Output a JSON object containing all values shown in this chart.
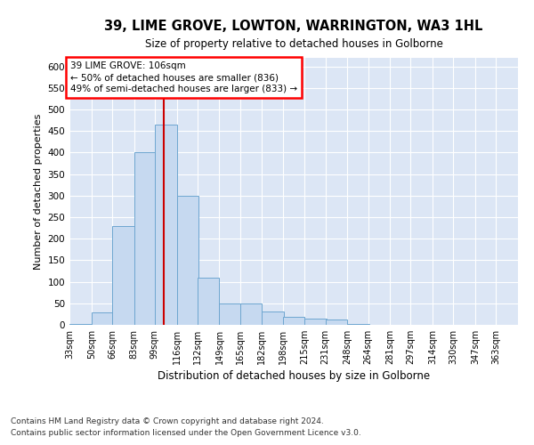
{
  "title": "39, LIME GROVE, LOWTON, WARRINGTON, WA3 1HL",
  "subtitle": "Size of property relative to detached houses in Golborne",
  "xlabel": "Distribution of detached houses by size in Golborne",
  "ylabel": "Number of detached properties",
  "footnote1": "Contains HM Land Registry data © Crown copyright and database right 2024.",
  "footnote2": "Contains public sector information licensed under the Open Government Licence v3.0.",
  "annotation_line1": "39 LIME GROVE: 106sqm",
  "annotation_line2": "← 50% of detached houses are smaller (836)",
  "annotation_line3": "49% of semi-detached houses are larger (833) →",
  "bar_color": "#c6d9f0",
  "bar_edge_color": "#6ea6d0",
  "bg_color": "#dce6f5",
  "grid_color": "#ffffff",
  "vline_color": "#cc0000",
  "vline_x": 106,
  "categories": [
    "33sqm",
    "50sqm",
    "66sqm",
    "83sqm",
    "99sqm",
    "116sqm",
    "132sqm",
    "149sqm",
    "165sqm",
    "182sqm",
    "198sqm",
    "215sqm",
    "231sqm",
    "248sqm",
    "264sqm",
    "281sqm",
    "297sqm",
    "314sqm",
    "330sqm",
    "347sqm",
    "363sqm"
  ],
  "bin_edges": [
    33,
    50,
    66,
    83,
    99,
    116,
    132,
    149,
    165,
    182,
    198,
    215,
    231,
    248,
    264,
    281,
    297,
    314,
    330,
    347,
    363
  ],
  "bin_width": 17,
  "values": [
    2,
    28,
    230,
    400,
    465,
    300,
    110,
    50,
    50,
    30,
    18,
    15,
    12,
    3,
    1,
    0,
    0,
    0,
    0,
    1,
    0
  ],
  "ylim": [
    0,
    620
  ],
  "yticks": [
    0,
    50,
    100,
    150,
    200,
    250,
    300,
    350,
    400,
    450,
    500,
    550,
    600
  ]
}
